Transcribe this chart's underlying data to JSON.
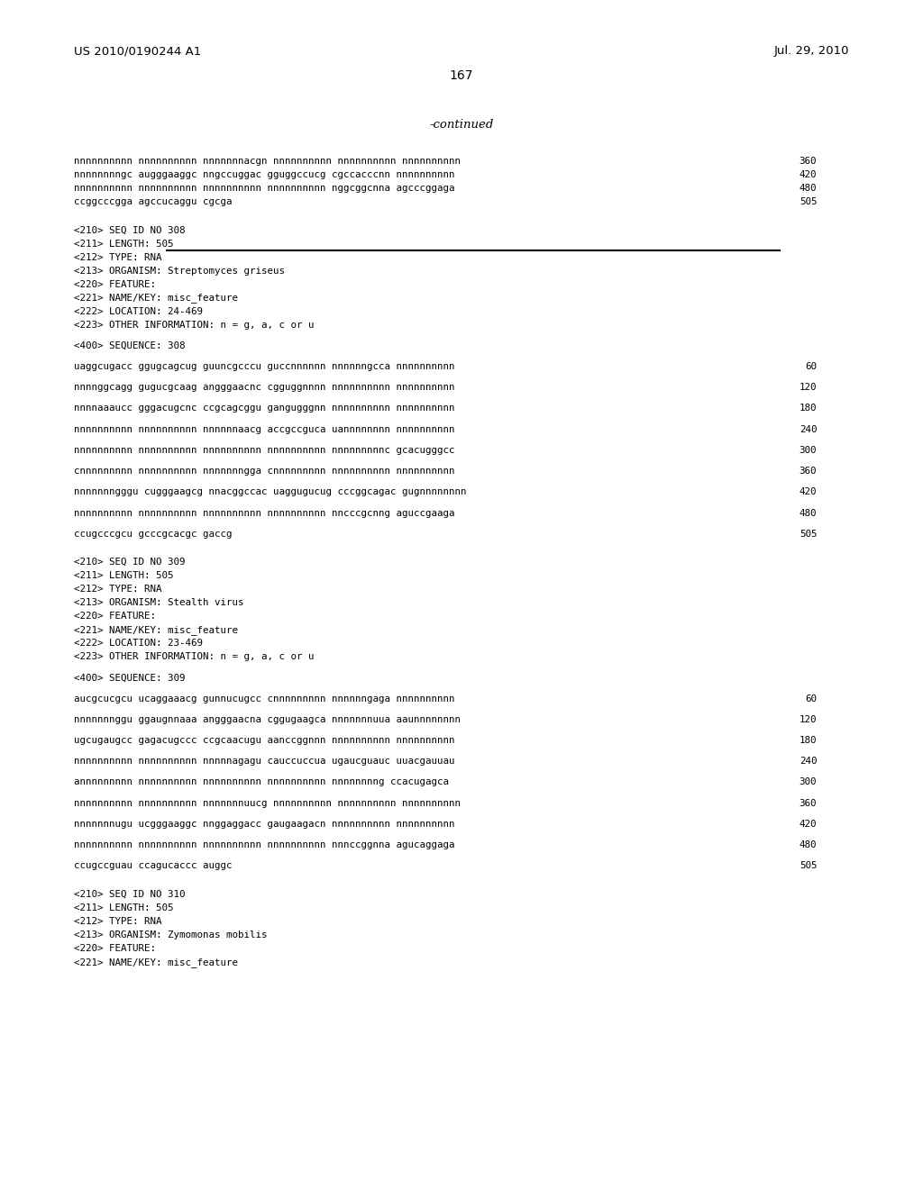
{
  "header_left": "US 2010/0190244 A1",
  "header_right": "Jul. 29, 2010",
  "page_number": "167",
  "continued_label": "-continued",
  "background_color": "#ffffff",
  "text_color": "#000000",
  "lines": [
    {
      "text": "nnnnnnnnnn nnnnnnnnnn nnnnnnnacgn nnnnnnnnnn nnnnnnnnnn nnnnnnnnnn",
      "num": "360",
      "type": "seq"
    },
    {
      "text": "nnnnnnnngc augggaaggc nngccuggac gguggccucg cgccacccnn nnnnnnnnnn",
      "num": "420",
      "type": "seq"
    },
    {
      "text": "nnnnnnnnnn nnnnnnnnnn nnnnnnnnnn nnnnnnnnnn nggcggcnna agcccggaga",
      "num": "480",
      "type": "seq"
    },
    {
      "text": "ccggcccgga agccucaggu cgcga",
      "num": "505",
      "type": "seq"
    },
    {
      "text": "",
      "type": "blank"
    },
    {
      "text": "",
      "type": "blank"
    },
    {
      "text": "<210> SEQ ID NO 308",
      "type": "meta"
    },
    {
      "text": "<211> LENGTH: 505",
      "type": "meta"
    },
    {
      "text": "<212> TYPE: RNA",
      "type": "meta"
    },
    {
      "text": "<213> ORGANISM: Streptomyces griseus",
      "type": "meta"
    },
    {
      "text": "<220> FEATURE:",
      "type": "meta"
    },
    {
      "text": "<221> NAME/KEY: misc_feature",
      "type": "meta"
    },
    {
      "text": "<222> LOCATION: 24-469",
      "type": "meta"
    },
    {
      "text": "<223> OTHER INFORMATION: n = g, a, c or u",
      "type": "meta"
    },
    {
      "text": "",
      "type": "blank"
    },
    {
      "text": "<400> SEQUENCE: 308",
      "type": "meta"
    },
    {
      "text": "",
      "type": "blank"
    },
    {
      "text": "uaggcugacc ggugcagcug guuncgcccu guccnnnnnn nnnnnngcca nnnnnnnnnn",
      "num": "60",
      "type": "seq"
    },
    {
      "text": "",
      "type": "blank"
    },
    {
      "text": "nnnnggcagg gugucgcaag angggaacnc cgguggnnnn nnnnnnnnnn nnnnnnnnnn",
      "num": "120",
      "type": "seq"
    },
    {
      "text": "",
      "type": "blank"
    },
    {
      "text": "nnnnaaaucc gggacugcnc ccgcagcggu gangugggnn nnnnnnnnnn nnnnnnnnnn",
      "num": "180",
      "type": "seq"
    },
    {
      "text": "",
      "type": "blank"
    },
    {
      "text": "nnnnnnnnnn nnnnnnnnnn nnnnnnaacg accgccguca uannnnnnnn nnnnnnnnnn",
      "num": "240",
      "type": "seq"
    },
    {
      "text": "",
      "type": "blank"
    },
    {
      "text": "nnnnnnnnnn nnnnnnnnnn nnnnnnnnnn nnnnnnnnnn nnnnnnnnnc gcacugggcc",
      "num": "300",
      "type": "seq"
    },
    {
      "text": "",
      "type": "blank"
    },
    {
      "text": "cnnnnnnnnn nnnnnnnnnn nnnnnnngga cnnnnnnnnn nnnnnnnnnn nnnnnnnnnn",
      "num": "360",
      "type": "seq"
    },
    {
      "text": "",
      "type": "blank"
    },
    {
      "text": "nnnnnnngggu cugggaagcg nnacggccac uaggugucug cccggcagac gugnnnnnnnn",
      "num": "420",
      "type": "seq"
    },
    {
      "text": "",
      "type": "blank"
    },
    {
      "text": "nnnnnnnnnn nnnnnnnnnn nnnnnnnnnn nnnnnnnnnn nncccgcnng aguccgaaga",
      "num": "480",
      "type": "seq"
    },
    {
      "text": "",
      "type": "blank"
    },
    {
      "text": "ccugcccgcu gcccgcacgc gaccg",
      "num": "505",
      "type": "seq"
    },
    {
      "text": "",
      "type": "blank"
    },
    {
      "text": "",
      "type": "blank"
    },
    {
      "text": "<210> SEQ ID NO 309",
      "type": "meta"
    },
    {
      "text": "<211> LENGTH: 505",
      "type": "meta"
    },
    {
      "text": "<212> TYPE: RNA",
      "type": "meta"
    },
    {
      "text": "<213> ORGANISM: Stealth virus",
      "type": "meta"
    },
    {
      "text": "<220> FEATURE:",
      "type": "meta"
    },
    {
      "text": "<221> NAME/KEY: misc_feature",
      "type": "meta"
    },
    {
      "text": "<222> LOCATION: 23-469",
      "type": "meta"
    },
    {
      "text": "<223> OTHER INFORMATION: n = g, a, c or u",
      "type": "meta"
    },
    {
      "text": "",
      "type": "blank"
    },
    {
      "text": "<400> SEQUENCE: 309",
      "type": "meta"
    },
    {
      "text": "",
      "type": "blank"
    },
    {
      "text": "aucgcucgcu ucaggaaacg gunnucugcc cnnnnnnnnn nnnnnngaga nnnnnnnnnn",
      "num": "60",
      "type": "seq"
    },
    {
      "text": "",
      "type": "blank"
    },
    {
      "text": "nnnnnnnggu ggaugnnaaa angggaacna cggugaagca nnnnnnnuua aaunnnnnnnn",
      "num": "120",
      "type": "seq"
    },
    {
      "text": "",
      "type": "blank"
    },
    {
      "text": "ugcugaugcc gagacugccc ccgcaacugu aanccggnnn nnnnnnnnnn nnnnnnnnnn",
      "num": "180",
      "type": "seq"
    },
    {
      "text": "",
      "type": "blank"
    },
    {
      "text": "nnnnnnnnnn nnnnnnnnnn nnnnnagagu cauccuccua ugaucguauc uuacgauuau",
      "num": "240",
      "type": "seq"
    },
    {
      "text": "",
      "type": "blank"
    },
    {
      "text": "annnnnnnnn nnnnnnnnnn nnnnnnnnnn nnnnnnnnnn nnnnnnnng ccacugagca",
      "num": "300",
      "type": "seq"
    },
    {
      "text": "",
      "type": "blank"
    },
    {
      "text": "nnnnnnnnnn nnnnnnnnnn nnnnnnnuucg nnnnnnnnnn nnnnnnnnnn nnnnnnnnnn",
      "num": "360",
      "type": "seq"
    },
    {
      "text": "",
      "type": "blank"
    },
    {
      "text": "nnnnnnnugu ucgggaaggc nnggaggacc gaugaagacn nnnnnnnnnn nnnnnnnnnn",
      "num": "420",
      "type": "seq"
    },
    {
      "text": "",
      "type": "blank"
    },
    {
      "text": "nnnnnnnnnn nnnnnnnnnn nnnnnnnnnn nnnnnnnnnn nnnccggnna agucaggaga",
      "num": "480",
      "type": "seq"
    },
    {
      "text": "",
      "type": "blank"
    },
    {
      "text": "ccugccguau ccagucaccc auggc",
      "num": "505",
      "type": "seq"
    },
    {
      "text": "",
      "type": "blank"
    },
    {
      "text": "",
      "type": "blank"
    },
    {
      "text": "<210> SEQ ID NO 310",
      "type": "meta"
    },
    {
      "text": "<211> LENGTH: 505",
      "type": "meta"
    },
    {
      "text": "<212> TYPE: RNA",
      "type": "meta"
    },
    {
      "text": "<213> ORGANISM: Zymomonas mobilis",
      "type": "meta"
    },
    {
      "text": "<220> FEATURE:",
      "type": "meta"
    },
    {
      "text": "<221> NAME/KEY: misc_feature",
      "type": "meta"
    }
  ]
}
